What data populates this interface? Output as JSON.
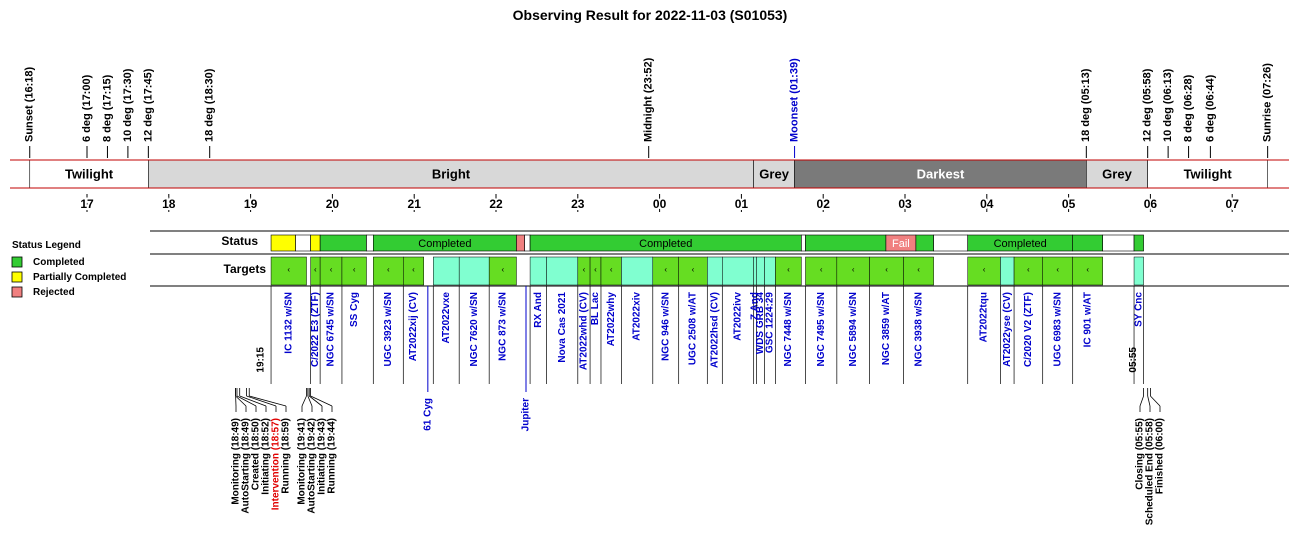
{
  "chart_data": {
    "type": "timeline",
    "title": "Observing Result for 2022-11-03 (S01053)",
    "top_events": [
      {
        "label": "Sunset (16:18)",
        "time": "16:18",
        "color": "#000000"
      },
      {
        "label": "6 deg (17:00)",
        "time": "17:00",
        "color": "#000000"
      },
      {
        "label": "8 deg (17:15)",
        "time": "17:15",
        "color": "#000000"
      },
      {
        "label": "10 deg (17:30)",
        "time": "17:30",
        "color": "#000000"
      },
      {
        "label": "12 deg (17:45)",
        "time": "17:45",
        "color": "#000000"
      },
      {
        "label": "18 deg (18:30)",
        "time": "18:30",
        "color": "#000000"
      },
      {
        "label": "Midnight (23:52)",
        "time": "23:52",
        "color": "#000000"
      },
      {
        "label": "Moonset (01:39)",
        "time": "01:39",
        "color": "#0000cc"
      },
      {
        "label": "18 deg (05:13)",
        "time": "05:13",
        "color": "#000000"
      },
      {
        "label": "12 deg (05:58)",
        "time": "05:58",
        "color": "#000000"
      },
      {
        "label": "10 deg (06:13)",
        "time": "06:13",
        "color": "#000000"
      },
      {
        "label": "8 deg (06:28)",
        "time": "06:28",
        "color": "#000000"
      },
      {
        "label": "6 deg (06:44)",
        "time": "06:44",
        "color": "#000000"
      },
      {
        "label": "Sunrise (07:26)",
        "time": "07:26",
        "color": "#000000"
      }
    ],
    "sky_bands": [
      {
        "label": "Twilight",
        "start": "16:18",
        "end": "17:45",
        "fill": "#ffffff",
        "text_color": "#000000"
      },
      {
        "label": "Bright",
        "start": "17:45",
        "end": "01:09",
        "fill": "#d8d8d8",
        "text_color": "#000000"
      },
      {
        "label": "Grey",
        "start": "01:09",
        "end": "01:39",
        "fill": "#d8d8d8",
        "text_color": "#000000"
      },
      {
        "label": "Darkest",
        "start": "01:39",
        "end": "05:13",
        "fill": "#7a7a7a",
        "text_color": "#ffffff"
      },
      {
        "label": "Grey",
        "start": "05:13",
        "end": "05:58",
        "fill": "#d8d8d8",
        "text_color": "#000000"
      },
      {
        "label": "Twilight",
        "start": "05:58",
        "end": "07:26",
        "fill": "#ffffff",
        "text_color": "#000000"
      }
    ],
    "hour_ticks": [
      "17",
      "18",
      "19",
      "20",
      "21",
      "22",
      "23",
      "00",
      "01",
      "02",
      "03",
      "04",
      "05",
      "06",
      "07"
    ],
    "row_labels": {
      "status": "Status",
      "targets": "Targets"
    },
    "legend": {
      "title": "Status Legend",
      "items": [
        {
          "label": "Completed",
          "color": "#33cc33"
        },
        {
          "label": "Partially Completed",
          "color": "#ffff00"
        },
        {
          "label": "Rejected",
          "color": "#f08080"
        }
      ]
    },
    "status_colors": {
      "completed": "#33cc33",
      "partial": "#ffff00",
      "rejected": "#f08080",
      "fail": "#f08080",
      "idle": "#ffffff"
    },
    "status_blocks": [
      {
        "start": "19:15",
        "end": "19:33",
        "status": "partial",
        "label": ""
      },
      {
        "start": "19:33",
        "end": "19:44",
        "status": "idle",
        "label": ""
      },
      {
        "start": "19:44",
        "end": "19:51",
        "status": "partial",
        "label": ""
      },
      {
        "start": "19:51",
        "end": "20:25",
        "status": "completed",
        "label": ""
      },
      {
        "start": "20:25",
        "end": "20:30",
        "status": "idle",
        "label": ""
      },
      {
        "start": "20:30",
        "end": "22:15",
        "status": "completed",
        "label": "Completed"
      },
      {
        "start": "22:15",
        "end": "22:21",
        "status": "rejected",
        "label": ""
      },
      {
        "start": "22:21",
        "end": "22:25",
        "status": "idle",
        "label": ""
      },
      {
        "start": "22:25",
        "end": "01:44",
        "status": "completed",
        "label": "Completed"
      },
      {
        "start": "01:44",
        "end": "01:47",
        "status": "idle",
        "label": ""
      },
      {
        "start": "01:47",
        "end": "02:46",
        "status": "completed",
        "label": ""
      },
      {
        "start": "02:46",
        "end": "03:08",
        "status": "fail",
        "label": "Fail"
      },
      {
        "start": "03:08",
        "end": "03:21",
        "status": "completed",
        "label": ""
      },
      {
        "start": "03:21",
        "end": "03:46",
        "status": "idle",
        "label": ""
      },
      {
        "start": "03:46",
        "end": "05:03",
        "status": "completed",
        "label": "Completed"
      },
      {
        "start": "05:03",
        "end": "05:25",
        "status": "completed",
        "label": ""
      },
      {
        "start": "05:25",
        "end": "05:48",
        "status": "idle",
        "label": ""
      },
      {
        "start": "05:48",
        "end": "05:55",
        "status": "completed",
        "label": ""
      }
    ],
    "target_colors": {
      "done": "#66dd22",
      "aqua": "#80ffd0"
    },
    "targets": [
      {
        "name": "IC 1132 w/SN",
        "start": "19:15",
        "end": "19:41",
        "state": "done"
      },
      {
        "name": "C/2022 E3 (ZTF)",
        "start": "19:44",
        "end": "19:51",
        "state": "done"
      },
      {
        "name": "NGC 6745 w/SN",
        "start": "19:51",
        "end": "20:07",
        "state": "done"
      },
      {
        "name": "SS Cyg",
        "start": "20:07",
        "end": "20:25",
        "state": "done"
      },
      {
        "name": "UGC 3923 w/SN",
        "start": "20:30",
        "end": "20:52",
        "state": "done"
      },
      {
        "name": "AT2022xij (CV)",
        "start": "20:52",
        "end": "21:07",
        "state": "done"
      },
      {
        "name": "AT2022vxe",
        "start": "21:14",
        "end": "21:33",
        "state": "aqua"
      },
      {
        "name": "NGC 7620 w/SN",
        "start": "21:33",
        "end": "21:55",
        "state": "aqua"
      },
      {
        "name": "NGC 873 w/SN",
        "start": "21:55",
        "end": "22:15",
        "state": "done"
      },
      {
        "name": "RX And",
        "start": "22:25",
        "end": "22:37",
        "state": "aqua"
      },
      {
        "name": "Nova Cas 2021",
        "start": "22:37",
        "end": "23:00",
        "state": "aqua"
      },
      {
        "name": "AT2022whd (CV)",
        "start": "23:00",
        "end": "23:09",
        "state": "done"
      },
      {
        "name": "BL Lac",
        "start": "23:09",
        "end": "23:17",
        "state": "done"
      },
      {
        "name": "AT2022why",
        "start": "23:17",
        "end": "23:32",
        "state": "done"
      },
      {
        "name": "AT2022xiv",
        "start": "23:32",
        "end": "23:55",
        "state": "aqua"
      },
      {
        "name": "NGC 946 w/SN",
        "start": "23:55",
        "end": "00:14",
        "state": "done"
      },
      {
        "name": "UGC 2508 w/AT",
        "start": "00:14",
        "end": "00:35",
        "state": "done"
      },
      {
        "name": "AT2022hsd (CV)",
        "start": "00:35",
        "end": "00:46",
        "state": "aqua"
      },
      {
        "name": "AT2022ivv",
        "start": "00:46",
        "end": "01:09",
        "state": "aqua"
      },
      {
        "name": "Z And",
        "start": "01:09",
        "end": "01:11",
        "state": "aqua"
      },
      {
        "name": "WDS GRB 34",
        "start": "01:11",
        "end": "01:17",
        "state": "aqua"
      },
      {
        "name": "GSC 1224:29",
        "start": "01:17",
        "end": "01:25",
        "state": "aqua"
      },
      {
        "name": "NGC 7448 w/SN",
        "start": "01:25",
        "end": "01:44",
        "state": "done"
      },
      {
        "name": "NGC 7495 w/SN",
        "start": "01:47",
        "end": "02:10",
        "state": "done"
      },
      {
        "name": "NGC 5894 w/SN",
        "start": "02:10",
        "end": "02:34",
        "state": "done"
      },
      {
        "name": "NGC 3859 w/AT",
        "start": "02:34",
        "end": "02:59",
        "state": "done"
      },
      {
        "name": "NGC 3938 w/SN",
        "start": "02:59",
        "end": "03:21",
        "state": "done"
      },
      {
        "name": "AT2022tqu",
        "start": "03:46",
        "end": "04:10",
        "state": "done"
      },
      {
        "name": "AT2022yse (CV)",
        "start": "04:10",
        "end": "04:20",
        "state": "aqua"
      },
      {
        "name": "C/2020 V2 (ZTF)",
        "start": "04:20",
        "end": "04:41",
        "state": "done"
      },
      {
        "name": "UGC 6983 w/SN",
        "start": "04:41",
        "end": "05:03",
        "state": "done"
      },
      {
        "name": "IC 901 w/AT",
        "start": "05:03",
        "end": "05:25",
        "state": "done"
      },
      {
        "name": "SY Cnc",
        "start": "05:48",
        "end": "05:55",
        "state": "aqua"
      }
    ],
    "extra_marks": [
      {
        "name": "61 Cyg",
        "time": "21:10"
      },
      {
        "name": "Jupiter",
        "time": "22:22"
      }
    ],
    "bound_marks": [
      {
        "label": "19:15",
        "time": "19:15"
      },
      {
        "label": "05:55",
        "time": "05:55"
      }
    ],
    "bottom_events": [
      {
        "label": "Monitoring (18:49)",
        "time": "18:49",
        "color": "#000000"
      },
      {
        "label": "AutoStarting (18:49)",
        "time": "18:49",
        "color": "#000000"
      },
      {
        "label": "Created (18:50)",
        "time": "18:50",
        "color": "#000000"
      },
      {
        "label": "Initiating (18:52)",
        "time": "18:52",
        "color": "#000000"
      },
      {
        "label": "Intervention (18:57)",
        "time": "18:57",
        "color": "#e00000"
      },
      {
        "label": "Running (18:59)",
        "time": "18:59",
        "color": "#000000"
      },
      {
        "label": "Monitoring (19:41)",
        "time": "19:41",
        "color": "#000000"
      },
      {
        "label": "AutoStarting (19:42)",
        "time": "19:42",
        "color": "#000000"
      },
      {
        "label": "Initiating (19:43)",
        "time": "19:43",
        "color": "#000000"
      },
      {
        "label": "Running (19:44)",
        "time": "19:44",
        "color": "#000000"
      },
      {
        "label": "Closing (05:55)",
        "time": "05:55",
        "color": "#000000"
      },
      {
        "label": "Scheduled End (05:58)",
        "time": "05:58",
        "color": "#000000"
      },
      {
        "label": "Finished (06:00)",
        "time": "06:00",
        "color": "#000000"
      }
    ]
  }
}
